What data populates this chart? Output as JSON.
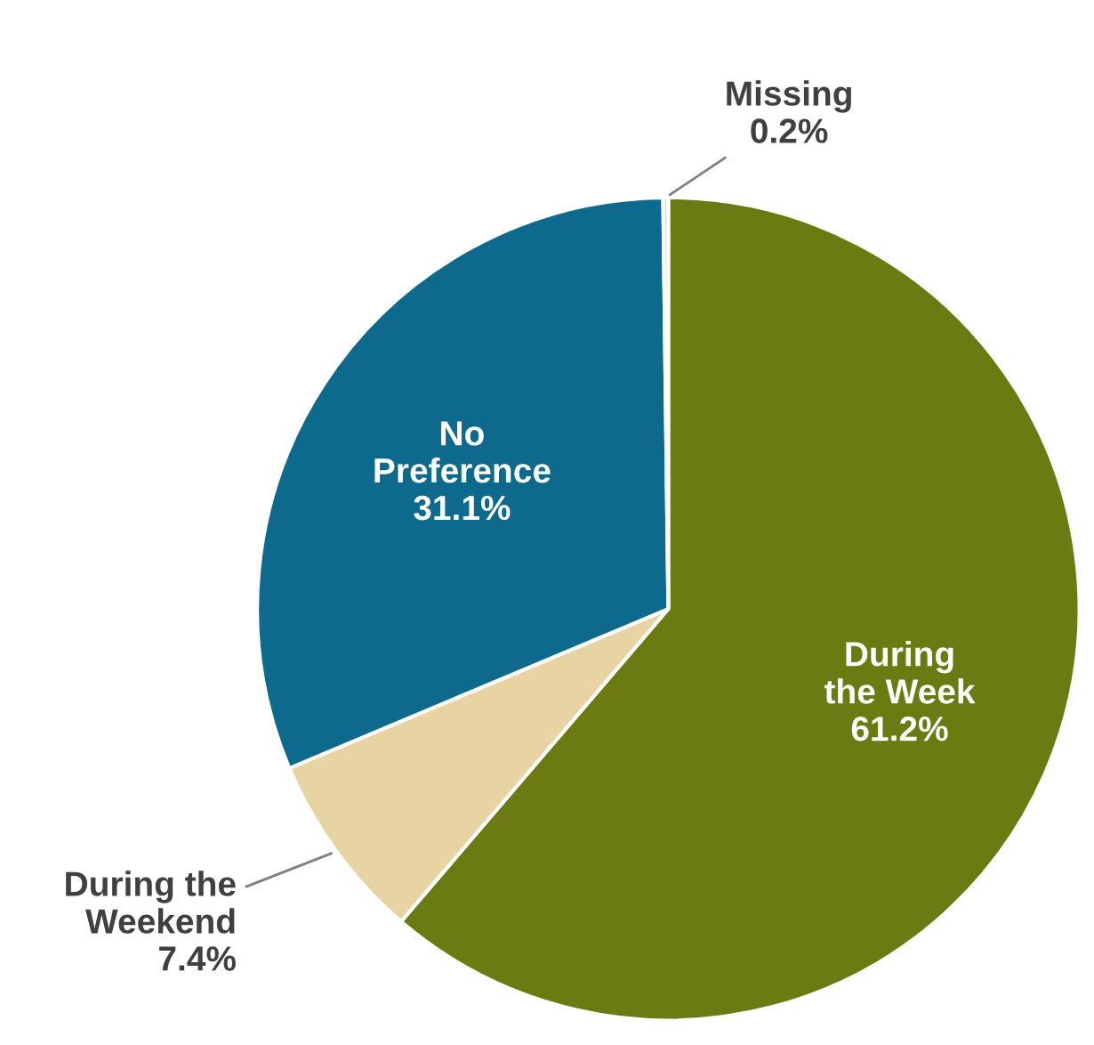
{
  "chart_data": {
    "type": "pie",
    "categories": [
      "During\nthe Week",
      "During the\nWeekend",
      "No\nPreference",
      "Missing"
    ],
    "values": [
      61.2,
      7.4,
      31.1,
      0.2
    ],
    "value_labels": [
      "61.2%",
      "7.4%",
      "31.1%",
      "0.2%"
    ],
    "colors": [
      "#6b7b12",
      "#e8d4a2",
      "#0e6a8c",
      "#d9d9d9"
    ],
    "legend": false
  }
}
